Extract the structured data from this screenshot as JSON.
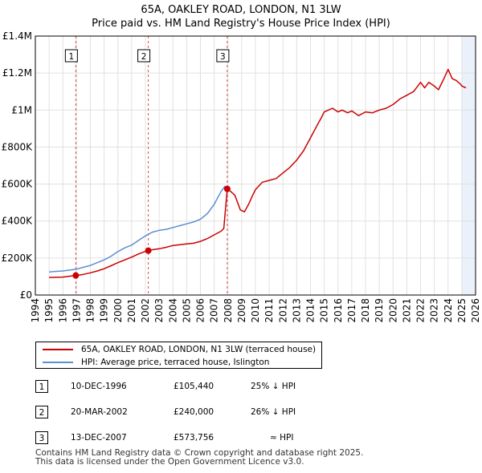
{
  "chart_data": {
    "type": "line",
    "title": "65A, OAKLEY ROAD, LONDON, N1 3LW",
    "subtitle": "Price paid vs. HM Land Registry's House Price Index (HPI)",
    "xlim": [
      1994,
      2026
    ],
    "ylim": [
      0,
      1400000
    ],
    "x_ticks": [
      1994,
      1995,
      1996,
      1997,
      1998,
      1999,
      2000,
      2001,
      2002,
      2003,
      2004,
      2005,
      2006,
      2007,
      2008,
      2009,
      2010,
      2011,
      2012,
      2013,
      2014,
      2015,
      2016,
      2017,
      2018,
      2019,
      2020,
      2021,
      2022,
      2023,
      2024,
      2025,
      2026
    ],
    "y_ticks": [
      {
        "value": 0,
        "label": "£0"
      },
      {
        "value": 200000,
        "label": "£200K"
      },
      {
        "value": 400000,
        "label": "£400K"
      },
      {
        "value": 600000,
        "label": "£600K"
      },
      {
        "value": 800000,
        "label": "£800K"
      },
      {
        "value": 1000000,
        "label": "£1M"
      },
      {
        "value": 1200000,
        "label": "£1.2M"
      },
      {
        "value": 1400000,
        "label": "£1.4M"
      }
    ],
    "series": [
      {
        "name": "65A, OAKLEY ROAD, LONDON, N1 3LW (terraced house)",
        "color": "#cc0000",
        "x": [
          1995.0,
          1995.5,
          1996.0,
          1996.5,
          1996.94,
          1997.5,
          1998.0,
          1998.5,
          1999.0,
          1999.5,
          2000.0,
          2000.5,
          2001.0,
          2001.5,
          2002.0,
          2002.21,
          2002.6,
          2003.0,
          2003.5,
          2004.0,
          2004.5,
          2005.0,
          2005.5,
          2006.0,
          2006.5,
          2007.0,
          2007.5,
          2007.7,
          2007.95,
          2008.2,
          2008.5,
          2008.9,
          2009.2,
          2009.5,
          2009.8,
          2010.0,
          2010.5,
          2011.0,
          2011.5,
          2012.0,
          2012.5,
          2013.0,
          2013.5,
          2014.0,
          2014.5,
          2014.8,
          2015.0,
          2015.3,
          2015.6,
          2016.0,
          2016.3,
          2016.7,
          2017.0,
          2017.5,
          2018.0,
          2018.5,
          2019.0,
          2019.5,
          2020.0,
          2020.5,
          2021.0,
          2021.5,
          2022.0,
          2022.3,
          2022.6,
          2023.0,
          2023.3,
          2023.5,
          2023.7,
          2024.0,
          2024.3,
          2024.6,
          2024.9,
          2025.0,
          2025.3
        ],
        "y": [
          95000,
          96000,
          97000,
          102000,
          105440,
          112000,
          120000,
          130000,
          142000,
          158000,
          175000,
          190000,
          205000,
          222000,
          236000,
          240000,
          246000,
          250000,
          258000,
          268000,
          272000,
          276000,
          280000,
          290000,
          305000,
          325000,
          345000,
          360000,
          573756,
          560000,
          540000,
          460000,
          450000,
          490000,
          540000,
          570000,
          610000,
          620000,
          630000,
          660000,
          690000,
          730000,
          780000,
          850000,
          920000,
          960000,
          990000,
          1000000,
          1010000,
          990000,
          1000000,
          985000,
          995000,
          970000,
          990000,
          985000,
          1000000,
          1010000,
          1030000,
          1060000,
          1080000,
          1100000,
          1150000,
          1120000,
          1150000,
          1130000,
          1110000,
          1140000,
          1170000,
          1220000,
          1170000,
          1160000,
          1140000,
          1130000,
          1120000
        ]
      },
      {
        "name": "HPI: Average price, terraced house, Islington",
        "color": "#5b8fd0",
        "x": [
          1995.0,
          1995.5,
          1996.0,
          1996.5,
          1997.0,
          1997.5,
          1998.0,
          1998.5,
          1999.0,
          1999.5,
          2000.0,
          2000.5,
          2001.0,
          2001.5,
          2002.0,
          2002.5,
          2003.0,
          2003.5,
          2004.0,
          2004.5,
          2005.0,
          2005.5,
          2006.0,
          2006.5,
          2007.0,
          2007.5,
          2007.8
        ],
        "y": [
          125000,
          128000,
          130000,
          135000,
          140000,
          150000,
          160000,
          175000,
          190000,
          210000,
          235000,
          255000,
          270000,
          295000,
          320000,
          340000,
          350000,
          355000,
          365000,
          375000,
          385000,
          395000,
          410000,
          440000,
          490000,
          560000,
          590000
        ]
      }
    ],
    "sales": [
      {
        "num": "1",
        "date": "10-DEC-1996",
        "year": 1996.94,
        "price": 105440,
        "price_label": "£105,440",
        "relation": "25% ↓ HPI"
      },
      {
        "num": "2",
        "date": "20-MAR-2002",
        "year": 2002.21,
        "price": 240000,
        "price_label": "£240,000",
        "relation": "26% ↓ HPI"
      },
      {
        "num": "3",
        "date": "13-DEC-2007",
        "year": 2007.95,
        "price": 573756,
        "price_label": "£573,756",
        "relation": "≈ HPI"
      }
    ],
    "legend_position": "bottom"
  },
  "colors": {
    "property": "#cc0000",
    "hpi": "#5b8fd0",
    "grid": "#e0e0e0",
    "plot_bg": "#ffffff",
    "shade": "#dde8f6"
  },
  "footer": {
    "line1": "Contains HM Land Registry data © Crown copyright and database right 2025.",
    "line2": "This data is licensed under the Open Government Licence v3.0."
  }
}
